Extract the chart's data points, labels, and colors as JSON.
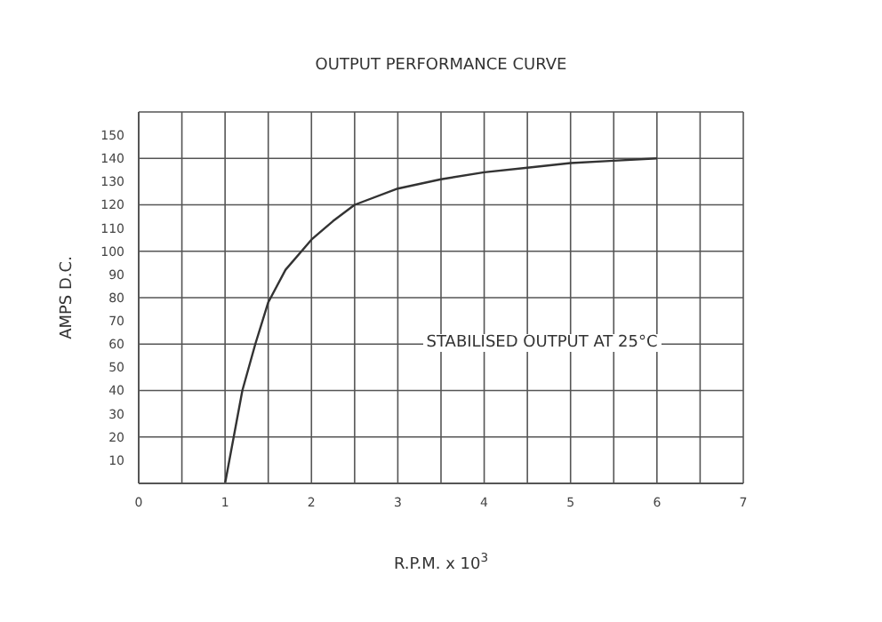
{
  "chart_data": {
    "type": "line",
    "title": "OUTPUT PERFORMANCE CURVE",
    "xlabel": "R.P.M. x 10$^{3}$",
    "ylabel": "AMPS D.C.",
    "annotations": [
      "STABILISED OUTPUT AT 25°C"
    ],
    "x": [
      1,
      1.1,
      1.2,
      1.35,
      1.5,
      1.7,
      2,
      2.25,
      2.5,
      3,
      3.5,
      4,
      4.5,
      5,
      5.5,
      6
    ],
    "series": [
      {
        "color": "#333333",
        "values": [
          0,
          20,
          40,
          60,
          78,
          92,
          105,
          113,
          120,
          127,
          131,
          134,
          136,
          138,
          139,
          140
        ]
      }
    ],
    "xlim": [
      0,
      7
    ],
    "xticks": [
      0,
      {
        "value": 0.5,
        "label": null
      },
      1,
      {
        "value": 1.5,
        "label": null
      },
      2,
      {
        "value": 2.5,
        "label": null
      },
      3,
      {
        "value": 3.5,
        "label": null
      },
      4,
      {
        "value": 4.5,
        "label": null
      },
      5,
      {
        "value": 5.5,
        "label": null
      },
      6,
      {
        "value": 6.5,
        "label": null
      },
      7
    ],
    "ylim": [
      0,
      160
    ],
    "yticks": [
      10,
      20,
      30,
      40,
      50,
      60,
      70,
      80,
      90,
      100,
      110,
      120,
      130,
      140,
      150,
      {
        "value": 160,
        "label": null
      }
    ],
    "grid": true,
    "marker": "none",
    "line_style": "solid",
    "legend": false
  }
}
